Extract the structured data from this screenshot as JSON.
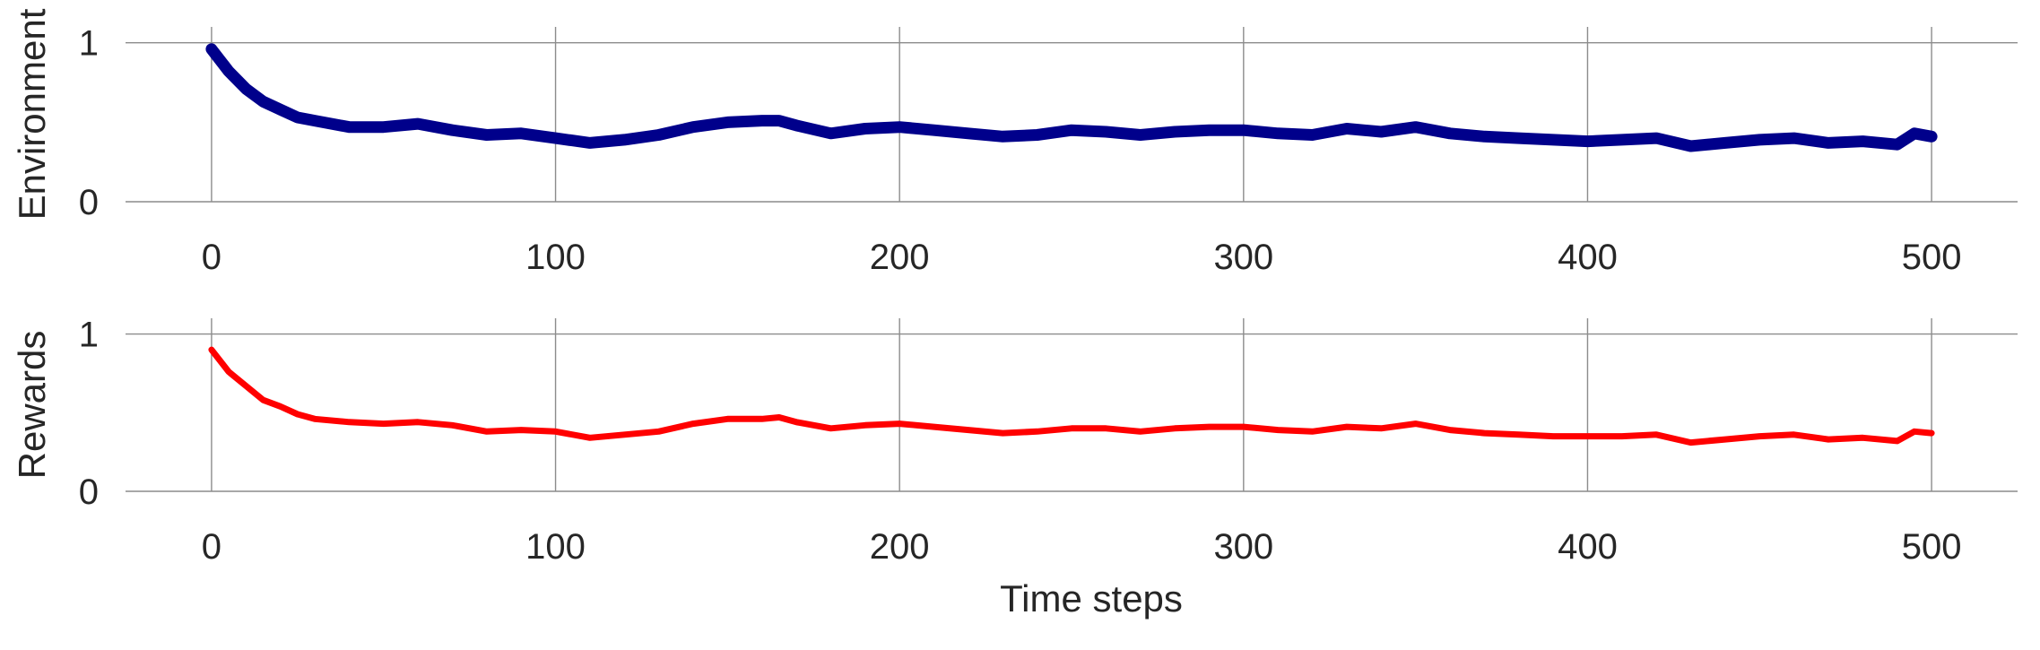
{
  "colors": {
    "environment": "#00008b",
    "rewards": "#ff0000",
    "grid": "#8c8c8c",
    "text": "#262626",
    "background": "#ffffff"
  },
  "chart_data": [
    {
      "type": "line",
      "ylabel": "Environment",
      "xlabel": "",
      "xlim": [
        -25,
        525
      ],
      "ylim": [
        0,
        1.1
      ],
      "xticks": [
        0,
        100,
        200,
        300,
        400,
        500
      ],
      "yticks": [
        0,
        1
      ],
      "grid": true,
      "legend": "none",
      "series": [
        {
          "color": "#00008b",
          "x": [
            0,
            5,
            10,
            15,
            20,
            25,
            30,
            40,
            50,
            60,
            70,
            80,
            90,
            100,
            110,
            120,
            130,
            140,
            150,
            160,
            165,
            170,
            180,
            190,
            200,
            210,
            220,
            230,
            240,
            250,
            260,
            270,
            280,
            290,
            300,
            310,
            320,
            330,
            340,
            350,
            360,
            370,
            380,
            390,
            400,
            410,
            420,
            430,
            440,
            450,
            460,
            470,
            480,
            490,
            495,
            500
          ],
          "y": [
            0.96,
            0.82,
            0.71,
            0.63,
            0.58,
            0.53,
            0.51,
            0.47,
            0.47,
            0.49,
            0.45,
            0.42,
            0.43,
            0.4,
            0.37,
            0.39,
            0.42,
            0.47,
            0.5,
            0.51,
            0.51,
            0.48,
            0.43,
            0.46,
            0.47,
            0.45,
            0.43,
            0.41,
            0.42,
            0.45,
            0.44,
            0.42,
            0.44,
            0.45,
            0.45,
            0.43,
            0.42,
            0.46,
            0.44,
            0.47,
            0.43,
            0.41,
            0.4,
            0.39,
            0.38,
            0.39,
            0.4,
            0.35,
            0.37,
            0.39,
            0.4,
            0.37,
            0.38,
            0.36,
            0.43,
            0.41
          ]
        }
      ]
    },
    {
      "type": "line",
      "ylabel": "Rewards",
      "xlabel": "Time steps",
      "xlim": [
        -25,
        525
      ],
      "ylim": [
        0,
        1.1
      ],
      "xticks": [
        0,
        100,
        200,
        300,
        400,
        500
      ],
      "yticks": [
        0,
        1
      ],
      "grid": true,
      "legend": "none",
      "series": [
        {
          "color": "#ff0000",
          "x": [
            0,
            5,
            10,
            15,
            20,
            25,
            30,
            40,
            50,
            60,
            70,
            80,
            90,
            100,
            110,
            120,
            130,
            140,
            150,
            160,
            165,
            170,
            180,
            190,
            200,
            210,
            220,
            230,
            240,
            250,
            260,
            270,
            280,
            290,
            300,
            310,
            320,
            330,
            340,
            350,
            360,
            370,
            380,
            390,
            400,
            410,
            420,
            430,
            440,
            450,
            460,
            470,
            480,
            490,
            495,
            500
          ],
          "y": [
            0.9,
            0.76,
            0.67,
            0.58,
            0.54,
            0.49,
            0.46,
            0.44,
            0.43,
            0.44,
            0.42,
            0.38,
            0.39,
            0.38,
            0.34,
            0.36,
            0.38,
            0.43,
            0.46,
            0.46,
            0.47,
            0.44,
            0.4,
            0.42,
            0.43,
            0.41,
            0.39,
            0.37,
            0.38,
            0.4,
            0.4,
            0.38,
            0.4,
            0.41,
            0.41,
            0.39,
            0.38,
            0.41,
            0.4,
            0.43,
            0.39,
            0.37,
            0.36,
            0.35,
            0.35,
            0.35,
            0.36,
            0.31,
            0.33,
            0.35,
            0.36,
            0.33,
            0.34,
            0.32,
            0.38,
            0.37
          ]
        }
      ]
    }
  ]
}
